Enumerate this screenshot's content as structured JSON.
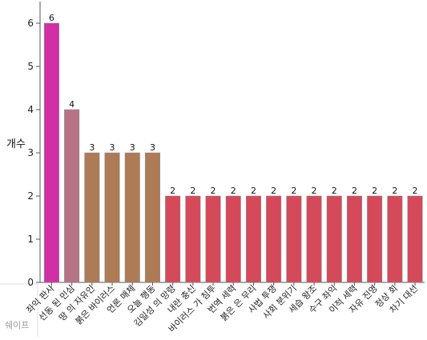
{
  "chart_data": {
    "type": "bar",
    "title": "",
    "xlabel": "",
    "ylabel": "개수",
    "ylim": [
      0,
      6.5
    ],
    "yticks": [
      0,
      1,
      2,
      3,
      4,
      5,
      6
    ],
    "grid": false,
    "legend": "none",
    "categories": [
      "좌익 판사",
      "선동 된 민심",
      "땅 의 자유인",
      "붉은 바이러스",
      "언론 매체",
      "오늘 행동",
      "김일성 의 망령",
      "내란 충신",
      "바이러스 가 침투",
      "번역 세력",
      "붉은 은 무리",
      "사법 투쟁",
      "사회 분위기",
      "세습 왕조",
      "수구 좌익",
      "이적 세력",
      "자유 진영",
      "정상 회",
      "차기 대선"
    ],
    "values": [
      6,
      4,
      3,
      3,
      3,
      3,
      2,
      2,
      2,
      2,
      2,
      2,
      2,
      2,
      2,
      2,
      2,
      2,
      2
    ],
    "colors": [
      "#d12fa5",
      "#b57385",
      "#ae7b57",
      "#ae7b57",
      "#ae7b57",
      "#ae7b57",
      "#d44a5a",
      "#d44a5a",
      "#d44a5a",
      "#d44a5a",
      "#d44a5a",
      "#d44a5a",
      "#d44a5a",
      "#d44a5a",
      "#d44a5a",
      "#d44a5a",
      "#d44a5a",
      "#d44a5a",
      "#d44a5a"
    ],
    "corner_label": "쉐이프"
  }
}
